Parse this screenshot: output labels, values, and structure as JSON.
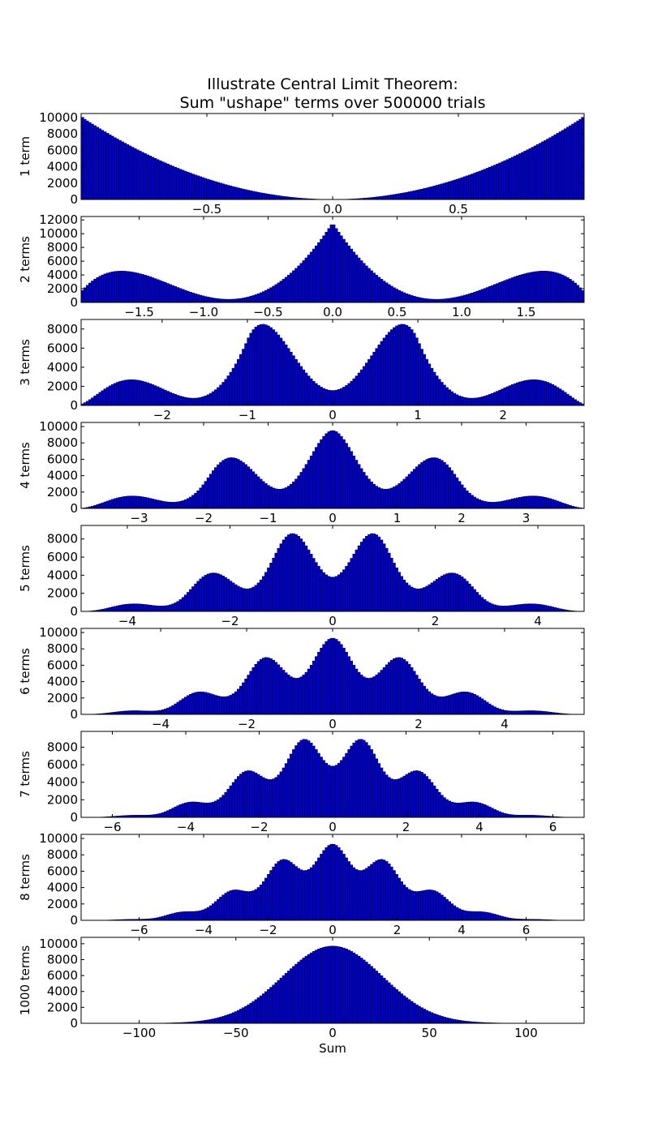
{
  "title_lines": [
    "Illustrate Central Limit Theorem:",
    "Sum \"ushape\" terms over 500000 trials"
  ],
  "colors": {
    "bar_fill": "#0000cc",
    "bar_edge": "#000000"
  },
  "chart_data": [
    {
      "type": "bar",
      "ylabel": "1 term",
      "xlim": [
        -1,
        1
      ],
      "ylim": [
        0,
        10500
      ],
      "xticks": [
        -0.5,
        0.0,
        0.5
      ],
      "xtick_labels": [
        "−0.5",
        "0.0",
        "0.5"
      ],
      "yticks": [
        0,
        2000,
        4000,
        6000,
        8000,
        10000
      ],
      "ytick_labels": [
        "0",
        "2000",
        "4000",
        "6000",
        "8000",
        "10000"
      ],
      "bins": 200,
      "shape": {
        "kind": "ushape",
        "terms": 1,
        "peak": 10000
      }
    },
    {
      "type": "bar",
      "ylabel": "2 terms",
      "xlim": [
        -1.95,
        1.95
      ],
      "ylim": [
        0,
        12500
      ],
      "xticks": [
        -1.5,
        -1.0,
        -0.5,
        0.0,
        0.5,
        1.0,
        1.5
      ],
      "xtick_labels": [
        "−1.5",
        "−1.0",
        "−0.5",
        "0.0",
        "0.5",
        "1.0",
        "1.5"
      ],
      "yticks": [
        0,
        2000,
        4000,
        6000,
        8000,
        10000,
        12000
      ],
      "ytick_labels": [
        "0",
        "2000",
        "4000",
        "6000",
        "8000",
        "10000",
        "12000"
      ],
      "bins": 200,
      "shape": {
        "kind": "sum",
        "terms": 2,
        "peak": 11300
      }
    },
    {
      "type": "bar",
      "ylabel": "3 terms",
      "xlim": [
        -2.95,
        2.95
      ],
      "ylim": [
        0,
        9000
      ],
      "xticks": [
        -2,
        -1,
        0,
        1,
        2
      ],
      "xtick_labels": [
        "−2",
        "−1",
        "0",
        "1",
        "2"
      ],
      "yticks": [
        0,
        2000,
        4000,
        6000,
        8000
      ],
      "ytick_labels": [
        "0",
        "2000",
        "4000",
        "6000",
        "8000"
      ],
      "bins": 200,
      "shape": {
        "kind": "sum",
        "terms": 3,
        "peak": 8500
      }
    },
    {
      "type": "bar",
      "ylabel": "4 terms",
      "xlim": [
        -3.9,
        3.9
      ],
      "ylim": [
        0,
        10500
      ],
      "xticks": [
        -3,
        -2,
        -1,
        0,
        1,
        2,
        3
      ],
      "xtick_labels": [
        "−3",
        "−2",
        "−1",
        "0",
        "1",
        "2",
        "3"
      ],
      "yticks": [
        0,
        2000,
        4000,
        6000,
        8000,
        10000
      ],
      "ytick_labels": [
        "0",
        "2000",
        "4000",
        "6000",
        "8000",
        "10000"
      ],
      "bins": 200,
      "shape": {
        "kind": "sum",
        "terms": 4,
        "peak": 9500
      }
    },
    {
      "type": "bar",
      "ylabel": "5 terms",
      "xlim": [
        -4.9,
        4.9
      ],
      "ylim": [
        0,
        9500
      ],
      "xticks": [
        -4,
        -2,
        0,
        2,
        4
      ],
      "xtick_labels": [
        "−4",
        "−2",
        "0",
        "2",
        "4"
      ],
      "yticks": [
        0,
        2000,
        4000,
        6000,
        8000
      ],
      "ytick_labels": [
        "0",
        "2000",
        "4000",
        "6000",
        "8000"
      ],
      "bins": 200,
      "shape": {
        "kind": "sum",
        "terms": 5,
        "peak": 8600
      }
    },
    {
      "type": "bar",
      "ylabel": "6 terms",
      "xlim": [
        -5.85,
        5.85
      ],
      "ylim": [
        0,
        10500
      ],
      "xticks": [
        -4,
        -2,
        0,
        2,
        4
      ],
      "xtick_labels": [
        "−4",
        "−2",
        "0",
        "2",
        "4"
      ],
      "yticks": [
        0,
        2000,
        4000,
        6000,
        8000,
        10000
      ],
      "ytick_labels": [
        "0",
        "2000",
        "4000",
        "6000",
        "8000",
        "10000"
      ],
      "bins": 200,
      "shape": {
        "kind": "sum",
        "terms": 6,
        "peak": 9300
      }
    },
    {
      "type": "bar",
      "ylabel": "7 terms",
      "xlim": [
        -6.85,
        6.85
      ],
      "ylim": [
        0,
        9800
      ],
      "xticks": [
        -6,
        -4,
        -2,
        0,
        2,
        4,
        6
      ],
      "xtick_labels": [
        "−6",
        "−4",
        "−2",
        "0",
        "2",
        "4",
        "6"
      ],
      "yticks": [
        0,
        2000,
        4000,
        6000,
        8000
      ],
      "ytick_labels": [
        "0",
        "2000",
        "4000",
        "6000",
        "8000"
      ],
      "bins": 200,
      "shape": {
        "kind": "sum",
        "terms": 7,
        "peak": 8900
      }
    },
    {
      "type": "bar",
      "ylabel": "8 terms",
      "xlim": [
        -7.8,
        7.8
      ],
      "ylim": [
        0,
        10500
      ],
      "xticks": [
        -6,
        -4,
        -2,
        0,
        2,
        4,
        6
      ],
      "xtick_labels": [
        "−6",
        "−4",
        "−2",
        "0",
        "2",
        "4",
        "6"
      ],
      "yticks": [
        0,
        2000,
        4000,
        6000,
        8000,
        10000
      ],
      "ytick_labels": [
        "0",
        "2000",
        "4000",
        "6000",
        "8000",
        "10000"
      ],
      "bins": 200,
      "shape": {
        "kind": "sum",
        "terms": 8,
        "peak": 9300
      }
    },
    {
      "type": "bar",
      "ylabel": "1000 terms",
      "xlabel": "Sum",
      "xlim": [
        -130,
        130
      ],
      "ylim": [
        0,
        10800
      ],
      "xticks": [
        -100,
        -50,
        0,
        50,
        100
      ],
      "xtick_labels": [
        "−100",
        "−50",
        "0",
        "50",
        "100"
      ],
      "yticks": [
        0,
        2000,
        4000,
        6000,
        8000,
        10000
      ],
      "ytick_labels": [
        "0",
        "2000",
        "4000",
        "6000",
        "8000",
        "10000"
      ],
      "bins": 200,
      "shape": {
        "kind": "gauss",
        "terms": 1000,
        "peak": 9700,
        "sigma": 25.8
      }
    }
  ]
}
